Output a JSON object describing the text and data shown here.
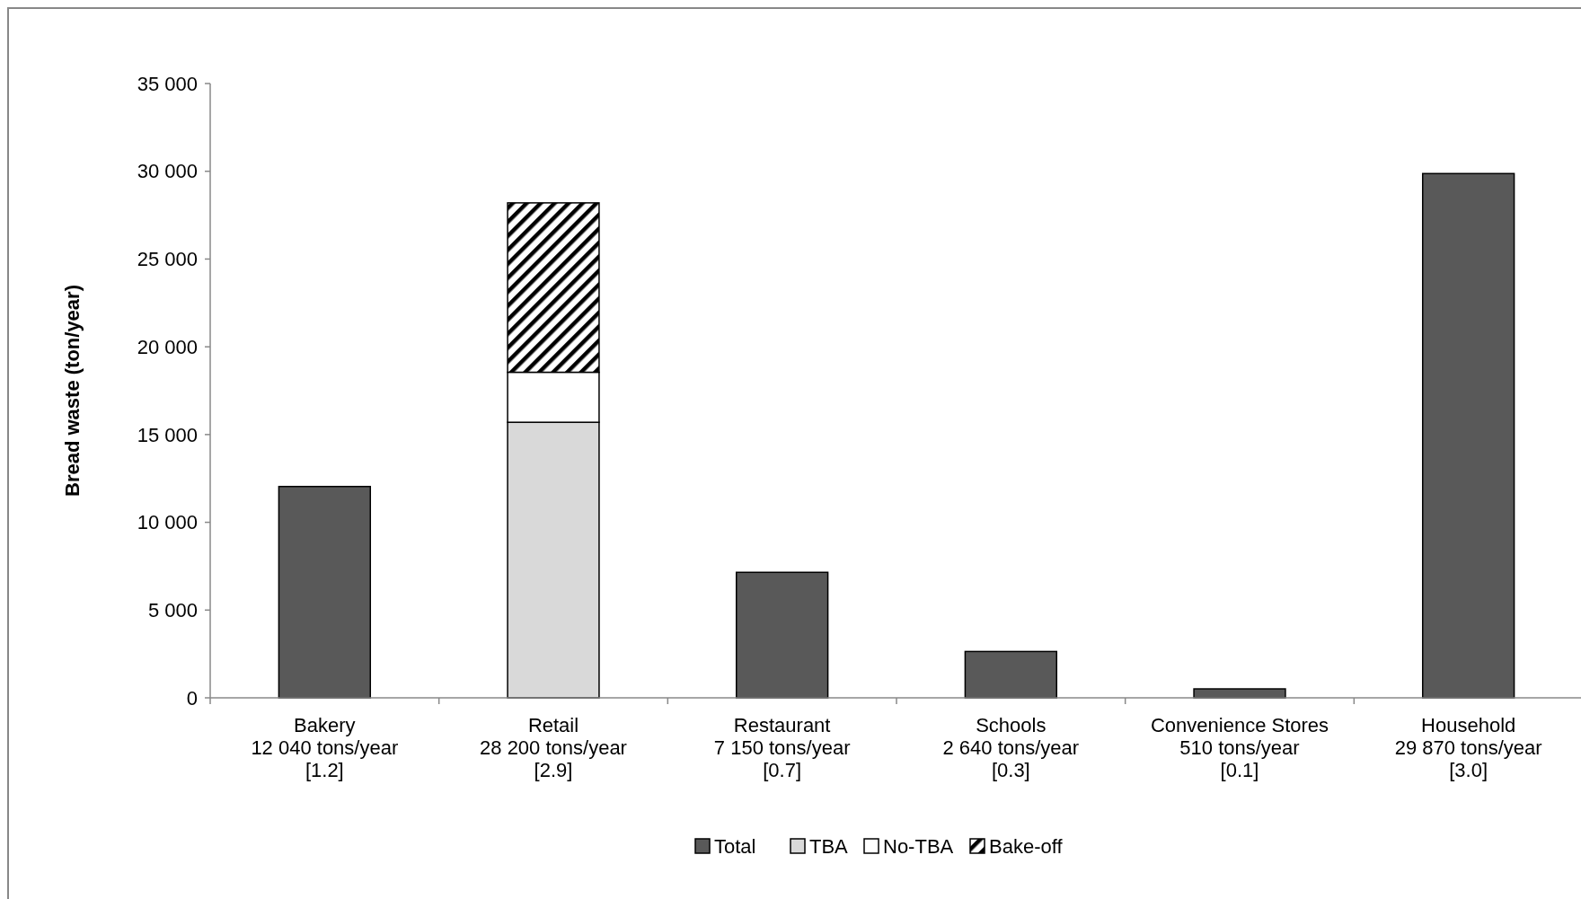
{
  "chart_data": {
    "type": "bar",
    "stacked": true,
    "ylabel": "Bread waste (ton/year)",
    "categories": [
      "Bakery\n12 040 tons/year\n[1.2]",
      "Retail\n28 200 tons/year\n[2.9]",
      "Restaurant\n7 150 tons/year\n[0.7]",
      "Schools\n2 640 tons/year\n[0.3]",
      "Convenience Stores\n510 tons/year\n[0.1]",
      "Household\n29 870 tons/year\n[3.0]"
    ],
    "series": [
      {
        "name": "Total",
        "color": "#595959",
        "values": [
          12040,
          null,
          7150,
          2640,
          510,
          29870
        ]
      },
      {
        "name": "TBA",
        "color": "#d9d9d9",
        "values": [
          null,
          15700,
          null,
          null,
          null,
          null
        ]
      },
      {
        "name": "No-TBA",
        "color": "#ffffff",
        "values": [
          null,
          2850,
          null,
          null,
          null,
          null
        ]
      },
      {
        "name": "Bake-off",
        "color": "#000000",
        "values": [
          null,
          9650,
          null,
          null,
          null,
          null
        ]
      }
    ],
    "ylim": [
      0,
      35000
    ],
    "yticks": [
      {
        "value": 0,
        "label": "0"
      },
      {
        "value": 5000,
        "label": "5 000"
      },
      {
        "value": 10000,
        "label": "10 000"
      },
      {
        "value": 15000,
        "label": "15 000"
      },
      {
        "value": 20000,
        "label": "20 000"
      },
      {
        "value": 25000,
        "label": "25 000"
      },
      {
        "value": 30000,
        "label": "30 000"
      },
      {
        "value": 35000,
        "label": "35 000"
      }
    ],
    "grid": false,
    "legend": "bottom"
  }
}
